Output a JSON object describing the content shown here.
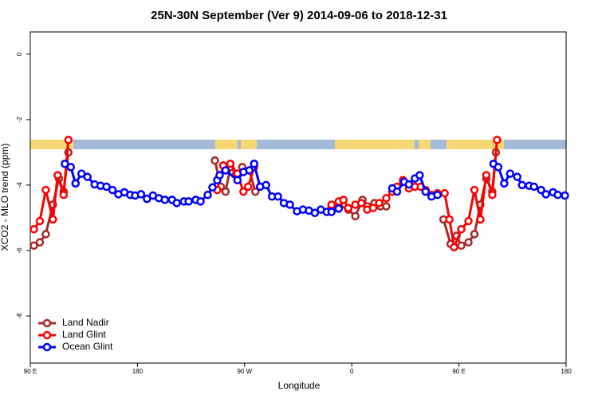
{
  "chart_data": {
    "type": "line",
    "title": "25N-30N September (Ver 9)   2014-09-06 to 2018-12-31",
    "x_label": "Longitude",
    "y_label": "XCO2 - MLO trend (ppm)",
    "xlim": [
      90,
      540
    ],
    "ylim": [
      -9.44,
      0.68
    ],
    "xticks": [
      {
        "value": 90,
        "label": "90 E"
      },
      180,
      {
        "value": 270,
        "label": "90 W"
      },
      {
        "value": 360,
        "label": "0"
      },
      {
        "value": 450,
        "label": "90 E"
      },
      {
        "value": 540,
        "label": "180"
      }
    ],
    "yticks": [
      0,
      -2,
      -4,
      -6,
      -8
    ],
    "legend": "bottomleft",
    "series": [
      {
        "name": "Land Nadir",
        "color": "#a52a2a",
        "x": [
          93,
          98,
          103,
          109,
          114,
          118,
          122,
          null,
          245,
          250,
          254,
          258,
          263,
          268,
          274,
          279,
          null,
          343,
          349,
          357,
          363,
          369,
          373,
          379,
          384,
          389,
          null,
          437,
          443,
          448,
          452,
          458,
          463,
          468,
          473,
          478,
          481
        ],
        "values": [
          -5.85,
          -5.75,
          -5.5,
          -4.6,
          -3.8,
          -4.2,
          -3.0,
          null,
          -3.25,
          -4.05,
          -4.2,
          -3.45,
          -3.65,
          -3.45,
          -3.55,
          -4.2,
          null,
          -4.65,
          -4.6,
          -4.75,
          -4.95,
          -4.45,
          -4.65,
          -4.55,
          -4.65,
          -4.65,
          null,
          -5.05,
          -5.8,
          -5.55,
          -5.85,
          -5.75,
          -5.5,
          -4.6,
          -3.8,
          -4.2,
          -3.0
        ]
      },
      {
        "name": "Land Glint",
        "color": "#ff0000",
        "x": [
          93,
          98,
          103,
          109,
          113,
          118,
          122,
          null,
          247,
          252,
          258,
          264,
          269,
          273,
          278,
          null,
          343,
          349,
          353,
          357,
          363,
          368,
          373,
          378,
          383,
          389,
          394,
          398,
          403,
          408,
          413,
          418,
          422,
          427,
          432,
          438,
          442,
          446,
          452,
          458,
          463,
          468,
          473,
          478,
          482
        ],
        "values": [
          -5.35,
          -5.1,
          -4.15,
          -5.05,
          -3.7,
          -4.3,
          -2.62,
          null,
          -4.15,
          -3.4,
          -3.35,
          -3.65,
          -4.2,
          -4.05,
          -3.45,
          null,
          -4.6,
          -4.5,
          -4.45,
          -4.7,
          -4.6,
          -4.55,
          -4.75,
          -4.7,
          -4.55,
          -4.4,
          -4.2,
          -4.05,
          -3.85,
          -4.1,
          -4.05,
          -4.05,
          -4.15,
          -4.3,
          -4.25,
          -4.25,
          -5.05,
          -5.9,
          -5.35,
          -5.1,
          -4.15,
          -5.05,
          -3.7,
          -4.3,
          -2.62
        ]
      },
      {
        "name": "Ocean Glint",
        "color": "#0000ff",
        "x": [
          119,
          124,
          128,
          133,
          138,
          144,
          149,
          154,
          159,
          164,
          169,
          174,
          178,
          183,
          188,
          193,
          198,
          203,
          209,
          213,
          219,
          223,
          229,
          233,
          239,
          243,
          247,
          249,
          254,
          264,
          269,
          274,
          278,
          283,
          288,
          293,
          298,
          303,
          308,
          314,
          319,
          324,
          329,
          334,
          339,
          343,
          349,
          null,
          394,
          398,
          404,
          408,
          413,
          417,
          422,
          427,
          432,
          null,
          479,
          483,
          488,
          493,
          499,
          503,
          509,
          513,
          519,
          523,
          529,
          533,
          539
        ],
        "values": [
          -3.35,
          -3.45,
          -3.95,
          -3.65,
          -3.75,
          -3.98,
          -4.02,
          -4.05,
          -4.15,
          -4.28,
          -4.22,
          -4.3,
          -4.32,
          -4.28,
          -4.42,
          -4.32,
          -4.4,
          -4.45,
          -4.45,
          -4.55,
          -4.5,
          -4.5,
          -4.45,
          -4.5,
          -4.3,
          -4.07,
          -3.85,
          -3.7,
          -3.55,
          -3.85,
          -3.6,
          -3.55,
          -3.35,
          -4.05,
          -4.0,
          -4.35,
          -4.35,
          -4.55,
          -4.6,
          -4.8,
          -4.75,
          -4.78,
          -4.85,
          -4.75,
          -4.82,
          -4.82,
          -4.72,
          null,
          -4.1,
          -4.2,
          -3.9,
          -3.98,
          -3.8,
          -3.7,
          -4.2,
          -4.35,
          -4.3,
          null,
          -3.35,
          -3.45,
          -3.95,
          -3.65,
          -3.75,
          -4.0,
          -4.02,
          -4.05,
          -4.15,
          -4.28,
          -4.22,
          -4.3,
          -4.32
        ]
      }
    ]
  }
}
